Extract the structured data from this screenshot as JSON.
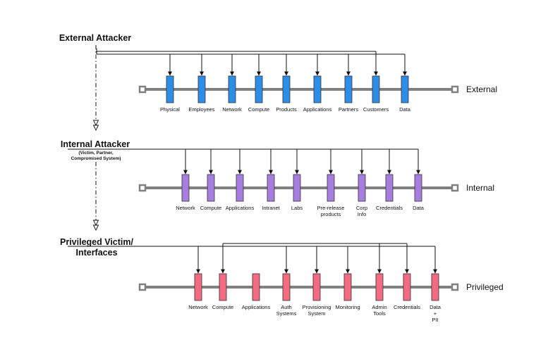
{
  "tiers": [
    {
      "id": "external",
      "title_lines": [
        "External Attacker"
      ],
      "subtitle_lines": [],
      "tier_label": "External",
      "color": "#2d8ee8",
      "boxes": [
        {
          "label": [
            "Physical"
          ],
          "connected": true
        },
        {
          "label": [
            "Employees"
          ],
          "connected": true
        },
        {
          "label": [
            "Network"
          ],
          "connected": true
        },
        {
          "label": [
            "Compute"
          ],
          "connected": true
        },
        {
          "label": [
            "Products"
          ],
          "connected": true
        },
        {
          "label": [
            "Applications"
          ],
          "connected": true
        },
        {
          "label": [
            "Partners"
          ],
          "connected": true
        },
        {
          "label": [
            "Customers"
          ],
          "connected": true
        },
        {
          "label": [
            "Data"
          ],
          "connected": true
        }
      ]
    },
    {
      "id": "internal",
      "title_lines": [
        "Internal Attacker"
      ],
      "subtitle_lines": [
        "(Victim, Partner,",
        "Compromised System)"
      ],
      "tier_label": "Internal",
      "color": "#a77ee0",
      "boxes": [
        {
          "label": [
            "Network"
          ],
          "connected": true
        },
        {
          "label": [
            "Compute"
          ],
          "connected": true
        },
        {
          "label": [
            "Applications"
          ],
          "connected": true
        },
        {
          "label": [
            "Intranet"
          ],
          "connected": true
        },
        {
          "label": [
            "Labs"
          ],
          "connected": true
        },
        {
          "label": [
            "Pre-release",
            "products"
          ],
          "connected": true
        },
        {
          "label": [
            "Corp",
            "Info"
          ],
          "connected": true
        },
        {
          "label": [
            "Credentials"
          ],
          "connected": true
        },
        {
          "label": [
            "Data"
          ],
          "connected": true
        }
      ]
    },
    {
      "id": "privileged",
      "title_lines": [
        "Privileged Victim/",
        "Interfaces"
      ],
      "subtitle_lines": [],
      "tier_label": "Privileged",
      "color": "#f36b80",
      "boxes": [
        {
          "label": [
            "Network"
          ],
          "connected": true
        },
        {
          "label": [
            "Compute"
          ],
          "connected": true
        },
        {
          "label": [
            "Applications"
          ],
          "connected": false
        },
        {
          "label": [
            "Auth",
            "Systems"
          ],
          "connected": true
        },
        {
          "label": [
            "Provisioning",
            "System"
          ],
          "connected": true
        },
        {
          "label": [
            "Monitoring"
          ],
          "connected": true
        },
        {
          "label": [
            "Admin",
            "Tools"
          ],
          "connected": true
        },
        {
          "label": [
            "Credentials"
          ],
          "connected": true
        },
        {
          "label": [
            "Data",
            "+",
            "PII"
          ],
          "connected": true
        }
      ]
    }
  ],
  "escalation_line_style": "dash-dot",
  "line_color": "#111111",
  "bar_color": "#808080"
}
